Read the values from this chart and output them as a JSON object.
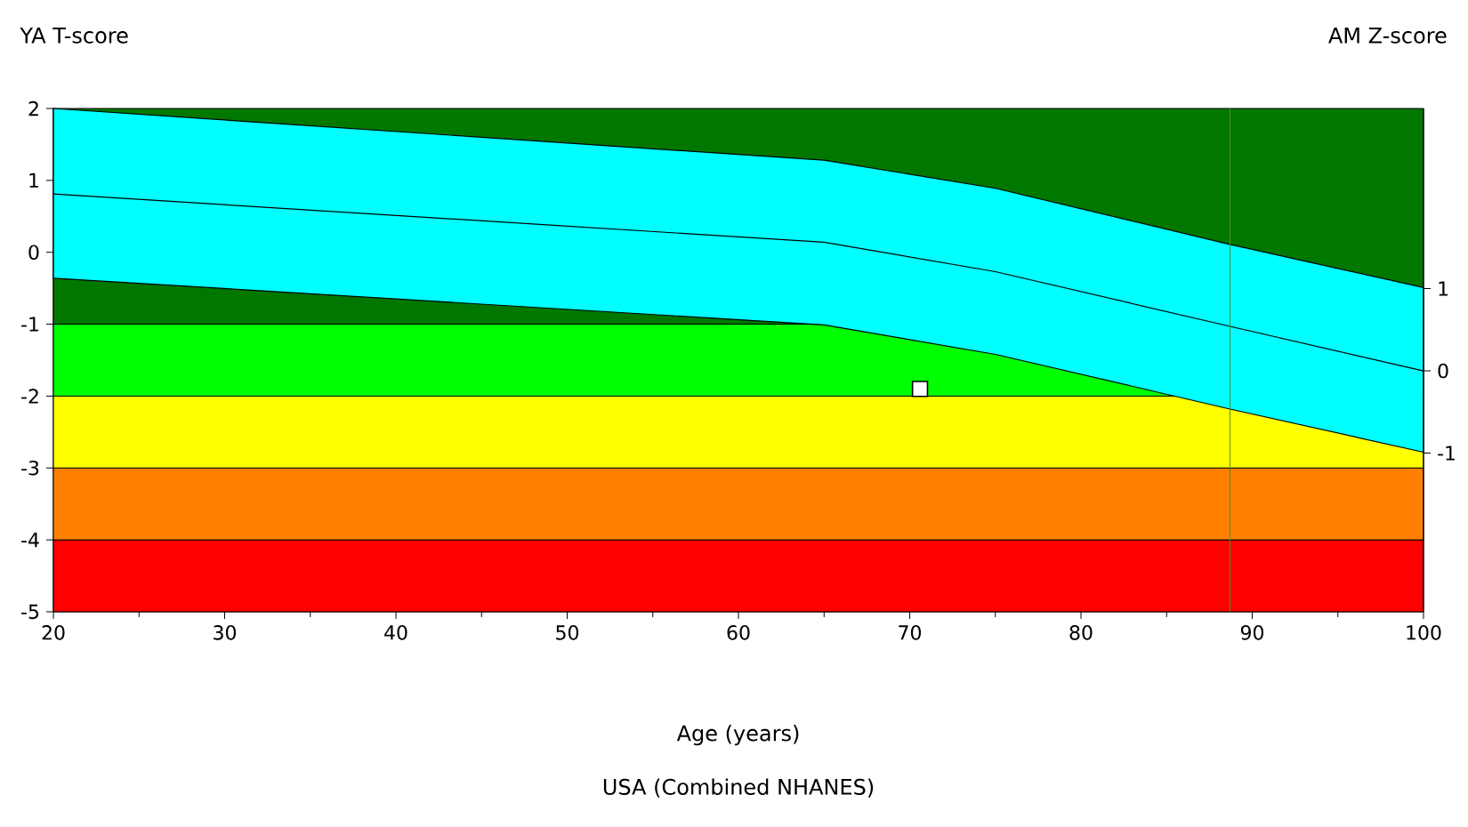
{
  "chart_data": {
    "type": "line",
    "ylabel": "YA T-score",
    "y2label": "AM Z-score",
    "xlabel": "Age (years)",
    "annotations": [
      "USA (Combined NHANES)"
    ],
    "xlim": [
      20,
      100
    ],
    "xticks": [
      20,
      30,
      40,
      50,
      60,
      70,
      80,
      90,
      100
    ],
    "ylim": [
      -5,
      2
    ],
    "yticks": [
      -5,
      -4,
      -3,
      -2,
      -1,
      0,
      1,
      2
    ],
    "y2lim": [
      -2.93,
      3.19
    ],
    "y2ticks": [
      -1,
      0,
      1
    ],
    "bands": [
      {
        "axis": "y",
        "from": -5,
        "to": -4,
        "color": "#ff0000"
      },
      {
        "axis": "y",
        "from": -4,
        "to": -3,
        "color": "#ff8000"
      },
      {
        "axis": "y",
        "from": -3,
        "to": -2,
        "color": "#ffff00"
      },
      {
        "axis": "y",
        "from": -2,
        "to": -1,
        "color": "#00ff00"
      },
      {
        "axis": "y",
        "from": -1,
        "to": 2,
        "color": "#007800"
      }
    ],
    "ref_lines": [
      {
        "axis": "x",
        "value": 88.7,
        "color": "#5a8a2a"
      }
    ],
    "series": [
      {
        "color": "#000000",
        "x": [
          20,
          65,
          75,
          88.7,
          100
        ],
        "values": [
          0.81,
          0.14,
          -0.27,
          -1.03,
          -1.65
        ],
        "lower": [
          -0.36,
          -1.01,
          -1.42,
          -2.18,
          -2.78
        ],
        "upper": [
          2.0,
          1.28,
          0.89,
          0.11,
          -0.49
        ]
      },
      {
        "type": "scatter",
        "color": "#000000",
        "marker": "square",
        "x": [
          70.6
        ],
        "values": [
          -1.9
        ]
      }
    ]
  }
}
